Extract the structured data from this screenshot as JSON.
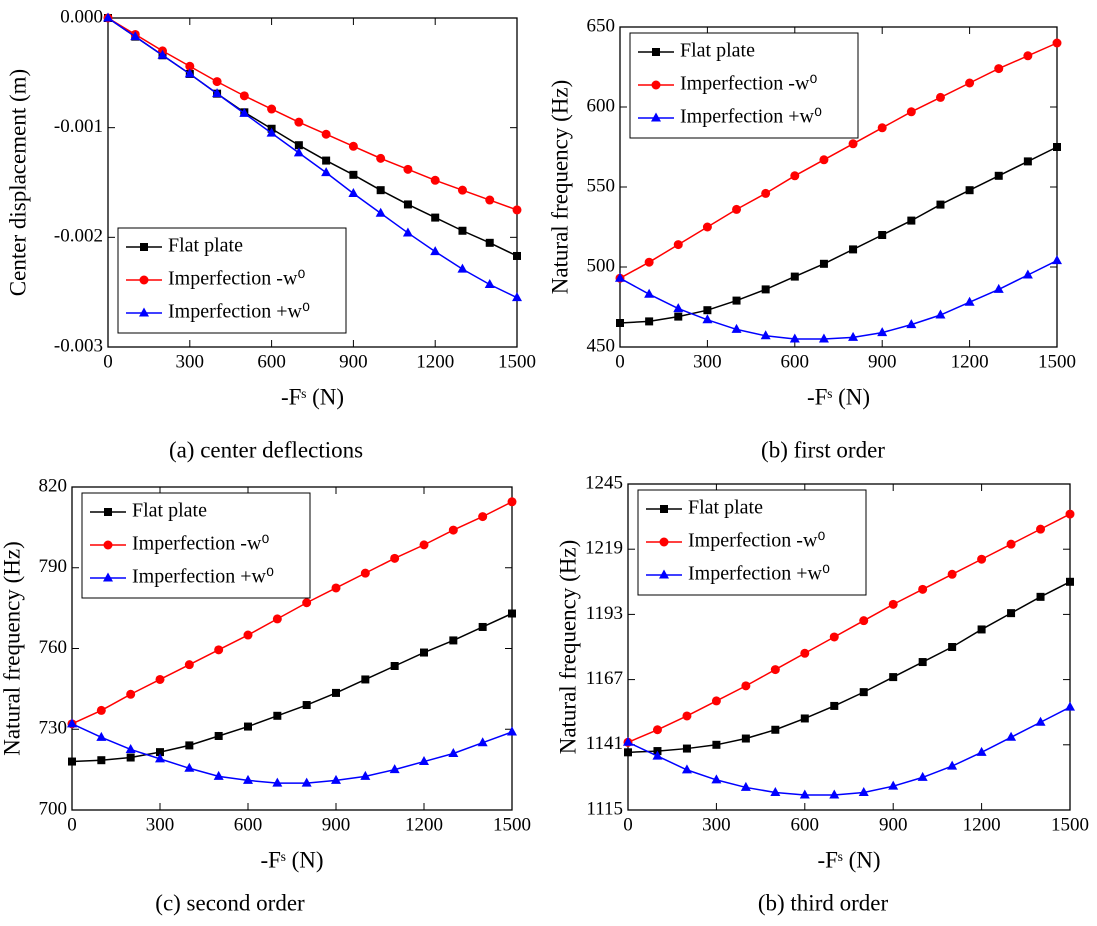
{
  "chart_data": [
    {
      "type": "line",
      "caption": "(a) center deflections",
      "xlabel": "-Fˢ (N)",
      "ylabel": "Center displacement (m)",
      "x": [
        0,
        100,
        200,
        300,
        400,
        500,
        600,
        700,
        800,
        900,
        1000,
        1100,
        1200,
        1300,
        1400,
        1500
      ],
      "xlim": [
        0,
        1500
      ],
      "xticks": [
        0,
        300,
        600,
        900,
        1200,
        1500
      ],
      "ylim": [
        -0.003,
        0
      ],
      "yticks": [
        {
          "value": -0.003,
          "label": "-0.003"
        },
        {
          "value": -0.002,
          "label": "-0.002"
        },
        {
          "value": -0.001,
          "label": "-0.001"
        },
        {
          "value": 0,
          "label": "0.000"
        }
      ],
      "legend": "lower-left",
      "series": [
        {
          "name": "Flat plate",
          "color": "#000000",
          "marker": "square",
          "values": [
            0,
            -0.00017,
            -0.00034,
            -0.00051,
            -0.00069,
            -0.00086,
            -0.00101,
            -0.00116,
            -0.0013,
            -0.00143,
            -0.00157,
            -0.0017,
            -0.00182,
            -0.00194,
            -0.00205,
            -0.00217
          ]
        },
        {
          "name": "Imperfection -w⁰",
          "color": "#ff0000",
          "marker": "circle",
          "values": [
            0,
            -0.00015,
            -0.0003,
            -0.00044,
            -0.00058,
            -0.00071,
            -0.00083,
            -0.00095,
            -0.00106,
            -0.00117,
            -0.00128,
            -0.00138,
            -0.00148,
            -0.00157,
            -0.00166,
            -0.00175
          ]
        },
        {
          "name": "Imperfection +w⁰",
          "color": "#0000ff",
          "marker": "triangle",
          "values": [
            0,
            -0.00017,
            -0.00034,
            -0.00051,
            -0.00069,
            -0.00087,
            -0.00105,
            -0.00123,
            -0.00141,
            -0.0016,
            -0.00178,
            -0.00196,
            -0.00213,
            -0.00229,
            -0.00243,
            -0.00255
          ]
        }
      ]
    },
    {
      "type": "line",
      "caption": "(b) first order",
      "xlabel": "-Fˢ (N)",
      "ylabel": "Natural frequency (Hz)",
      "x": [
        0,
        100,
        200,
        300,
        400,
        500,
        600,
        700,
        800,
        900,
        1000,
        1100,
        1200,
        1300,
        1400,
        1500
      ],
      "xlim": [
        0,
        1500
      ],
      "xticks": [
        0,
        300,
        600,
        900,
        1200,
        1500
      ],
      "ylim": [
        450,
        650
      ],
      "yticks": [
        450,
        500,
        550,
        600,
        650
      ],
      "legend": "upper-left",
      "series": [
        {
          "name": "Flat plate",
          "color": "#000000",
          "marker": "square",
          "values": [
            465,
            466,
            469,
            473,
            479,
            486,
            494,
            502,
            511,
            520,
            529,
            539,
            548,
            557,
            566,
            575
          ]
        },
        {
          "name": "Imperfection -w⁰",
          "color": "#ff0000",
          "marker": "circle",
          "values": [
            493,
            503,
            514,
            525,
            536,
            546,
            557,
            567,
            577,
            587,
            597,
            606,
            615,
            624,
            632,
            640
          ]
        },
        {
          "name": "Imperfection +w⁰",
          "color": "#0000ff",
          "marker": "triangle",
          "values": [
            493,
            483,
            474,
            467,
            461,
            457,
            455,
            455,
            456,
            459,
            464,
            470,
            478,
            486,
            495,
            504
          ]
        }
      ]
    },
    {
      "type": "line",
      "caption": "(c) second order",
      "xlabel": "-Fˢ (N)",
      "ylabel": "Natural frequency (Hz)",
      "x": [
        0,
        100,
        200,
        300,
        400,
        500,
        600,
        700,
        800,
        900,
        1000,
        1100,
        1200,
        1300,
        1400,
        1500
      ],
      "xlim": [
        0,
        1500
      ],
      "xticks": [
        0,
        300,
        600,
        900,
        1200,
        1500
      ],
      "ylim": [
        700,
        820
      ],
      "yticks": [
        700,
        730,
        760,
        790,
        820
      ],
      "legend": "upper-left",
      "series": [
        {
          "name": "Flat plate",
          "color": "#000000",
          "marker": "square",
          "values": [
            718,
            718.5,
            719.5,
            721.5,
            724,
            727.5,
            731,
            735,
            739,
            743.5,
            748.5,
            753.5,
            758.5,
            763,
            768,
            773
          ]
        },
        {
          "name": "Imperfection -w⁰",
          "color": "#ff0000",
          "marker": "circle",
          "values": [
            732,
            737,
            743,
            748.5,
            754,
            759.5,
            765,
            771,
            777,
            782.5,
            788,
            793.5,
            798.5,
            804,
            809,
            814.5
          ]
        },
        {
          "name": "Imperfection +w⁰",
          "color": "#0000ff",
          "marker": "triangle",
          "values": [
            732,
            727,
            722.5,
            719,
            715.5,
            712.5,
            711,
            710,
            710,
            711,
            712.5,
            715,
            718,
            721,
            725,
            729
          ]
        }
      ]
    },
    {
      "type": "line",
      "caption": "(b) third order",
      "xlabel": "-Fˢ (N)",
      "ylabel": "Natural frequency (Hz)",
      "x": [
        0,
        100,
        200,
        300,
        400,
        500,
        600,
        700,
        800,
        900,
        1000,
        1100,
        1200,
        1300,
        1400,
        1500
      ],
      "xlim": [
        0,
        1500
      ],
      "xticks": [
        0,
        300,
        600,
        900,
        1200,
        1500
      ],
      "ylim": [
        1115,
        1245
      ],
      "yticks": [
        1115,
        1141,
        1167,
        1193,
        1219,
        1245
      ],
      "legend": "upper-left",
      "series": [
        {
          "name": "Flat plate",
          "color": "#000000",
          "marker": "square",
          "values": [
            1138,
            1138.5,
            1139.5,
            1141,
            1143.5,
            1147,
            1151.5,
            1156.5,
            1162,
            1168,
            1174,
            1180,
            1187,
            1193.5,
            1200,
            1206
          ]
        },
        {
          "name": "Imperfection -w⁰",
          "color": "#ff0000",
          "marker": "circle",
          "values": [
            1142,
            1147,
            1152.5,
            1158.5,
            1164.5,
            1171,
            1177.5,
            1184,
            1190.5,
            1197,
            1203,
            1209,
            1215,
            1221,
            1227,
            1233
          ]
        },
        {
          "name": "Imperfection +w⁰",
          "color": "#0000ff",
          "marker": "triangle",
          "values": [
            1142,
            1136.5,
            1131,
            1127,
            1124,
            1122,
            1121,
            1121,
            1122,
            1124.5,
            1128,
            1132.5,
            1138,
            1144,
            1150,
            1156
          ]
        }
      ]
    }
  ]
}
